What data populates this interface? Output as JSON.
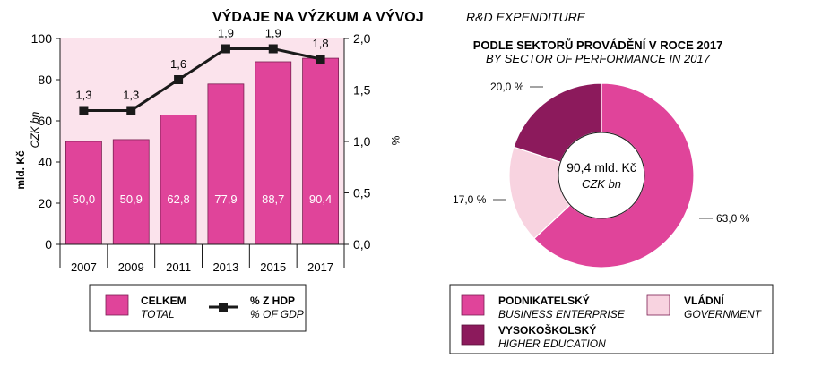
{
  "title": {
    "cz": "VÝDAJE NA VÝZKUM A VÝVOJ",
    "en": "R&D EXPENDITURE"
  },
  "colors": {
    "bar": "#E0449A",
    "bar_stroke": "#7a1f52",
    "plot_bg": "#FBE3EC",
    "line": "#1a1a1a",
    "business": "#E0449A",
    "government": "#F8D3E0",
    "higher_education": "#8C1A5C",
    "text": "#1a1a1a"
  },
  "chart_data": [
    {
      "type": "bar",
      "categories": [
        "2007",
        "2009",
        "2011",
        "2013",
        "2015",
        "2017"
      ],
      "series": [
        {
          "name": "CELKEM",
          "name_en": "TOTAL",
          "values": [
            50.0,
            50.9,
            62.8,
            77.9,
            88.7,
            90.4
          ],
          "labels": [
            "50,0",
            "50,9",
            "62,8",
            "77,9",
            "88,7",
            "90,4"
          ]
        },
        {
          "name": "% Z HDP",
          "name_en": "% OF GDP",
          "type": "line",
          "axis": "right",
          "values": [
            1.3,
            1.3,
            1.6,
            1.9,
            1.9,
            1.8
          ],
          "labels": [
            "1,3",
            "1,3",
            "1,6",
            "1,9",
            "1,9",
            "1,8"
          ]
        }
      ],
      "ylabel_cz": "mld. Kč",
      "ylabel_en": "CZK bn",
      "y2label": "%",
      "ylim": [
        0,
        100
      ],
      "y2lim": [
        0,
        2.0
      ],
      "yticks": [
        "0",
        "20",
        "40",
        "60",
        "80",
        "100"
      ],
      "y2ticks": [
        "0,0",
        "0,5",
        "1,0",
        "1,5",
        "2,0"
      ],
      "grid": false,
      "legend": "bottom"
    },
    {
      "type": "pie",
      "title": "PODLE SEKTORŮ PROVÁDĚNÍ V ROCE 2017",
      "subtitle": "BY SECTOR OF PERFORMANCE IN 2017",
      "center_value": "90,4 mld. Kč",
      "center_unit": "CZK bn",
      "slices": [
        {
          "name": "PODNIKATELSKÝ",
          "name_en": "BUSINESS ENTERPRISE",
          "value": 63.0,
          "label": "63,0 %"
        },
        {
          "name": "VLÁDNÍ",
          "name_en": "GOVERNMENT",
          "value": 17.0,
          "label": "17,0 %"
        },
        {
          "name": "VYSOKOŠKOLSKÝ",
          "name_en": "HIGHER EDUCATION",
          "value": 20.0,
          "label": "20,0 %"
        }
      ],
      "legend": "bottom"
    }
  ]
}
